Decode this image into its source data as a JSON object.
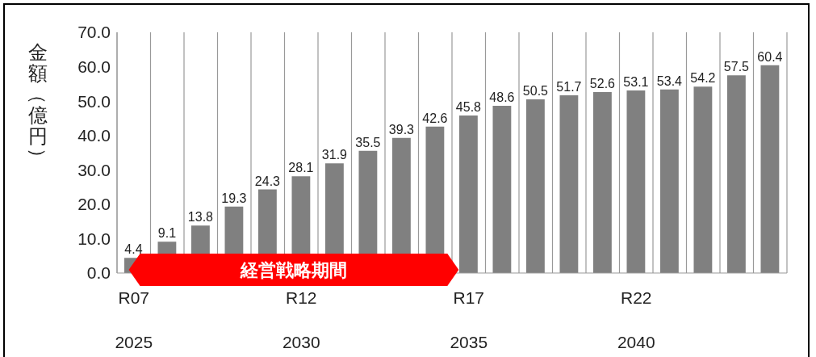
{
  "chart_data": {
    "type": "bar",
    "ylabel": "金額（億円）",
    "categories": [
      "R07\n2025",
      null,
      null,
      null,
      null,
      "R12\n2030",
      null,
      null,
      null,
      null,
      "R17\n2035",
      null,
      null,
      null,
      null,
      "R22\n2040",
      null,
      null,
      null,
      null
    ],
    "values": [
      4.4,
      9.1,
      13.8,
      19.3,
      24.3,
      28.1,
      31.9,
      35.5,
      39.3,
      42.6,
      45.8,
      48.6,
      50.5,
      51.7,
      52.6,
      53.1,
      53.4,
      54.2,
      57.5,
      60.4
    ],
    "color": "#808080",
    "data_labels": true,
    "grid": "x",
    "ylim": [
      0,
      70
    ],
    "yticks": [
      {
        "value": 0,
        "label": "0.0"
      },
      {
        "value": 10,
        "label": "10.0"
      },
      {
        "value": 20,
        "label": "20.0"
      },
      {
        "value": 30,
        "label": "30.0"
      },
      {
        "value": 40,
        "label": "40.0"
      },
      {
        "value": 50,
        "label": "50.0"
      },
      {
        "value": 60,
        "label": "60.0"
      },
      {
        "value": 70,
        "label": "70.0"
      }
    ],
    "annotations": [
      "経営戦略期間"
    ]
  }
}
